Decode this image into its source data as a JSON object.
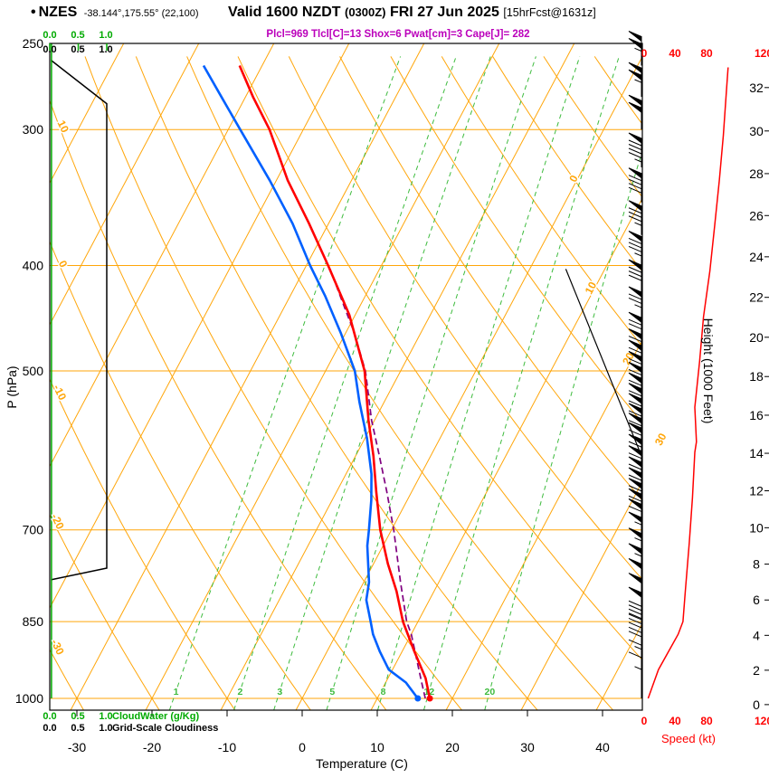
{
  "header": {
    "bullet": "•",
    "station": "NZES",
    "coords": "-38.144°,175.55° (22,100)",
    "valid": "Valid 1600 NZDT",
    "zulu": "(0300Z)",
    "date": "FRI 27 Jun 2025",
    "fcst": "[15hrFcst@1631z]",
    "indices": "Plcl=969 Tlcl[C]=13 Shox=6 Pwat[cm]=3 Cape[J]= 282"
  },
  "axis": {
    "p_label": "P (hPa)",
    "t_label": "Temperature (C)",
    "h_label": "Height (1000 Feet)",
    "s_label": "Speed (kt)",
    "cw_label": "CloudWater (g/Kg)",
    "gc_label": "Grid-Scale Cloudiness",
    "cw_ticks": [
      "0.0",
      "0.5",
      "1.0"
    ]
  },
  "colors": {
    "grid_orange": "#ffa60a",
    "mixing_green": "#3dbb3d",
    "cloud_green": "#00aa00",
    "temp_red": "#ff0000",
    "dew_blue": "#0060ff",
    "parcel_purple": "#800080",
    "speed_red": "#ff0000",
    "black": "#000000"
  },
  "chart_data": {
    "type": "skewt_log_p",
    "pressure_range_hpa": [
      250,
      1025
    ],
    "pressure_ticks_hpa": [
      250,
      300,
      400,
      500,
      700,
      850,
      1000
    ],
    "temp_ticks_c": [
      -30,
      -20,
      -10,
      0,
      10,
      20,
      30,
      40
    ],
    "height_ticks_kft": [
      0,
      2,
      4,
      6,
      8,
      10,
      12,
      14,
      16,
      18,
      20,
      22,
      24,
      26,
      28,
      30,
      32
    ],
    "speed_ticks_kt": [
      0,
      40,
      80,
      120
    ],
    "isotherms": {
      "min": -80,
      "max": 40,
      "step": 10
    },
    "isotherm_labels": [
      [
        0,
        334
      ],
      [
        10,
        421
      ],
      [
        20,
        489
      ],
      [
        30,
        580
      ]
    ],
    "dry_adiabats": {
      "min": -40,
      "max": 140,
      "step": 10
    },
    "adiabat_labels": [
      [
        10,
        299
      ],
      [
        0,
        400
      ],
      [
        -10,
        525
      ],
      [
        -20,
        690
      ],
      [
        -30,
        900
      ]
    ],
    "mixing_ratio_g_kg": [
      1,
      2,
      3,
      5,
      8,
      12,
      20
    ],
    "temperature_c": [
      [
        1000,
        17.0
      ],
      [
        958,
        15.0
      ],
      [
        905,
        11.6
      ],
      [
        850,
        8.0
      ],
      [
        797,
        5.0
      ],
      [
        752,
        1.9
      ],
      [
        700,
        -1.5
      ],
      [
        646,
        -4.7
      ],
      [
        599,
        -7.6
      ],
      [
        555,
        -10.8
      ],
      [
        500,
        -14.8
      ],
      [
        444,
        -20.8
      ],
      [
        400,
        -27.1
      ],
      [
        366,
        -32.6
      ],
      [
        334,
        -38.5
      ],
      [
        300,
        -44.5
      ],
      [
        280,
        -49.0
      ],
      [
        262,
        -53.0
      ]
    ],
    "dewpoint_c": [
      [
        1000,
        15.4
      ],
      [
        967,
        12.7
      ],
      [
        941,
        9.5
      ],
      [
        905,
        7.0
      ],
      [
        873,
        4.9
      ],
      [
        850,
        3.7
      ],
      [
        812,
        1.6
      ],
      [
        782,
        0.7
      ],
      [
        724,
        -2.1
      ],
      [
        700,
        -3.0
      ],
      [
        657,
        -4.8
      ],
      [
        622,
        -6.6
      ],
      [
        577,
        -9.7
      ],
      [
        534,
        -13.3
      ],
      [
        500,
        -16.1
      ],
      [
        461,
        -20.7
      ],
      [
        427,
        -25.3
      ],
      [
        400,
        -29.5
      ],
      [
        366,
        -34.8
      ],
      [
        334,
        -40.9
      ],
      [
        300,
        -48.4
      ],
      [
        280,
        -53.2
      ],
      [
        262,
        -57.8
      ]
    ],
    "parcel_c": [
      [
        1000,
        16.4
      ],
      [
        967,
        14.8
      ],
      [
        873,
        10.0
      ],
      [
        850,
        8.5
      ],
      [
        782,
        4.9
      ],
      [
        700,
        0.3
      ],
      [
        646,
        -3.3
      ],
      [
        599,
        -6.8
      ],
      [
        555,
        -10.4
      ],
      [
        500,
        -14.7
      ],
      [
        461,
        -18.9
      ],
      [
        427,
        -23.3
      ],
      [
        403,
        -26.6
      ]
    ],
    "cut_line": [
      [
        403,
        4.8
      ],
      [
        607,
        28.9
      ]
    ],
    "cloudiness_fraction": [
      [
        259,
        0.02
      ],
      [
        284,
        1.0
      ],
      [
        759,
        1.0
      ],
      [
        778,
        0.02
      ]
    ],
    "cloudwater_g_kg": [
      [
        250,
        0.03
      ],
      [
        1000,
        0.03
      ]
    ],
    "wind_speed_kt": [
      [
        1000,
        5
      ],
      [
        941,
        18
      ],
      [
        873,
        43
      ],
      [
        850,
        49
      ],
      [
        797,
        52
      ],
      [
        719,
        57
      ],
      [
        654,
        61
      ],
      [
        594,
        64
      ],
      [
        581,
        66
      ],
      [
        540,
        64
      ],
      [
        490,
        70
      ],
      [
        446,
        75
      ],
      [
        405,
        83
      ],
      [
        368,
        89
      ],
      [
        334,
        95
      ],
      [
        304,
        100
      ],
      [
        276,
        104
      ],
      [
        263,
        106
      ]
    ],
    "wind_barbs_kt": [
      [
        1000,
        5
      ],
      [
        975,
        10
      ],
      [
        950,
        15
      ],
      [
        925,
        22
      ],
      [
        900,
        30
      ],
      [
        875,
        42
      ],
      [
        850,
        49
      ],
      [
        825,
        51
      ],
      [
        800,
        52
      ],
      [
        775,
        54
      ],
      [
        750,
        55
      ],
      [
        725,
        57
      ],
      [
        705,
        58
      ],
      [
        690,
        59
      ],
      [
        675,
        60
      ],
      [
        660,
        60
      ],
      [
        645,
        61
      ],
      [
        630,
        62
      ],
      [
        615,
        63
      ],
      [
        600,
        64
      ],
      [
        588,
        65
      ],
      [
        576,
        66
      ],
      [
        564,
        65
      ],
      [
        552,
        64
      ],
      [
        540,
        64
      ],
      [
        528,
        64
      ],
      [
        516,
        65
      ],
      [
        504,
        67
      ],
      [
        492,
        69
      ],
      [
        475,
        72
      ],
      [
        450,
        75
      ],
      [
        425,
        79
      ],
      [
        400,
        83
      ],
      [
        375,
        87
      ],
      [
        350,
        92
      ],
      [
        325,
        97
      ],
      [
        300,
        101
      ],
      [
        280,
        104
      ],
      [
        262,
        106
      ]
    ]
  }
}
